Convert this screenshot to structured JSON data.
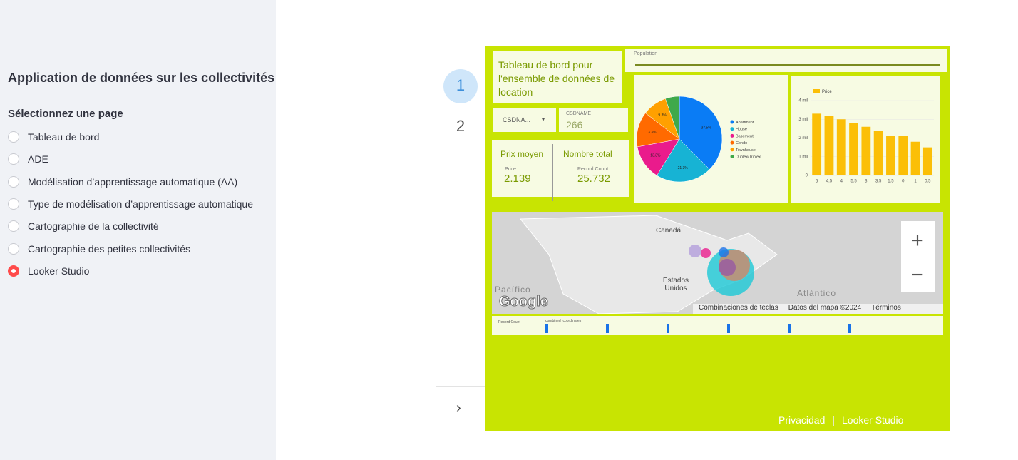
{
  "sidebar": {
    "title": "Application de données sur les collectivités",
    "label": "Sélectionnez une page",
    "options": [
      "Tableau de bord",
      "ADE",
      "Modélisation d’apprentissage automatique (AA)",
      "Type de modélisation d’apprentissage automatique",
      "Cartographie de la collectivité",
      "Cartographie des petites collectivités",
      "Looker Studio"
    ],
    "selected": 6
  },
  "nav": {
    "pages": [
      "1",
      "2"
    ]
  },
  "dashboard": {
    "title": "Tableau de bord pour l'ensemble de données de location",
    "population_label": "Population",
    "filter": {
      "dropdown": "CSDNA...",
      "label": "CSDNAME",
      "value": "266"
    },
    "average": {
      "title": "Prix moyen",
      "label": "Price",
      "value": "2.139"
    },
    "total": {
      "title": "Nombre total",
      "label": "Record Count",
      "value": "25.732"
    },
    "pie": {
      "type": "pie",
      "categories": [
        "Apartment",
        "House",
        "Basement",
        "Condo",
        "Townhouse",
        "Duplex/Triplex"
      ],
      "values": [
        37.5,
        21.3,
        13.3,
        13.3,
        9.3,
        5.3
      ],
      "value_labels": [
        "37.5%",
        "21.3%",
        "13.3%",
        "13.3%",
        "9.3%",
        null
      ],
      "colors": [
        "#0a7cf5",
        "#17b3d4",
        "#ea1b8c",
        "#ff6a00",
        "#ffa000",
        "#3fa94a"
      ]
    },
    "bar": {
      "type": "bar",
      "legend": "Price",
      "categories": [
        "5",
        "4.5",
        "4",
        "5.5",
        "3",
        "3.5",
        "1.5",
        "0",
        "1",
        "0.5"
      ],
      "values": [
        3300000,
        3200000,
        3000000,
        2800000,
        2600000,
        2400000,
        2100000,
        2100000,
        1800000,
        1500000
      ],
      "color": "#fbbf07",
      "ylim": [
        0,
        4000000
      ],
      "yticks": [
        0,
        {
          "value": 1000000,
          "label": "1 mil"
        },
        {
          "value": 2000000,
          "label": "2 mil"
        },
        {
          "value": 3000000,
          "label": "3 mil"
        },
        {
          "value": 4000000,
          "label": "4 mil"
        }
      ]
    },
    "map": {
      "canada": "Canadá",
      "usa": "Estados Unidos",
      "pacific": "Pacífico",
      "atlantic": "Atlántico",
      "google": "Google",
      "shortcuts": "Combinaciones de teclas",
      "mapdata": "Datos del mapa ©2024",
      "terms": "Términos",
      "size_legend": "Record Count",
      "color_legend": "combined_coordinates"
    },
    "footer": {
      "privacy": "Privacidad",
      "brand": "Looker Studio"
    }
  }
}
